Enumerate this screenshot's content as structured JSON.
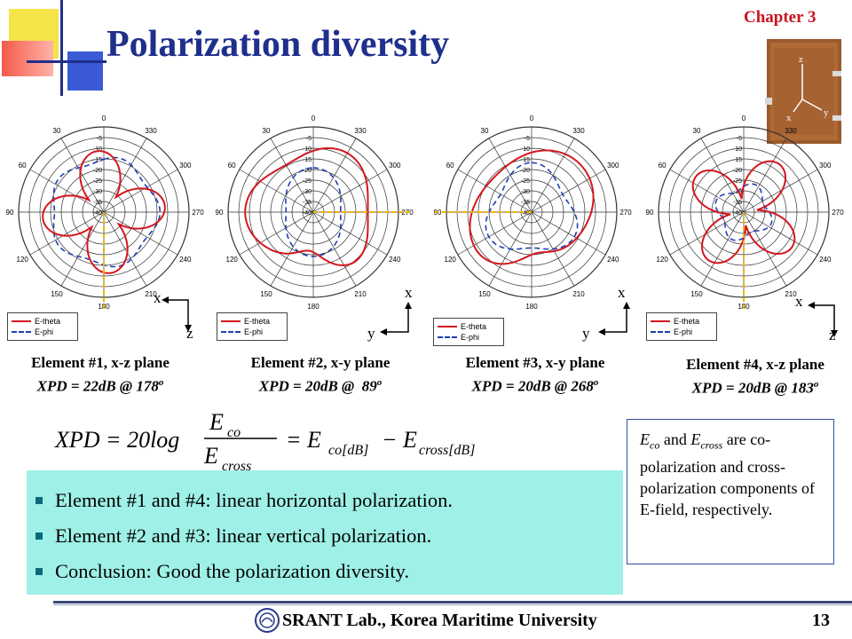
{
  "slide": {
    "chapter": "Chapter 3",
    "title": "Polarization diversity"
  },
  "photo": {
    "axes": [
      "z",
      "y",
      "x"
    ]
  },
  "polar_scale": {
    "radial_ticks": [
      "0",
      "-5",
      "-10",
      "-15",
      "-20",
      "-25",
      "-30",
      "-35",
      "-40"
    ],
    "angle_ticks": [
      "0",
      "30",
      "60",
      "90",
      "120",
      "150",
      "180",
      "210",
      "240",
      "270",
      "300",
      "330"
    ]
  },
  "legend": {
    "theta_label": "E-theta",
    "phi_label": "E-phi",
    "theta_color": "#d4161e",
    "phi_color": "#1f3fb0"
  },
  "elements": [
    {
      "caption": "Element #1, x-z plane",
      "xpd": "XPD = 22dB @ 178",
      "deg": "o",
      "axis_up": "x",
      "axis_side": "z"
    },
    {
      "caption": "Element #2, x-y plane",
      "xpd": "XPD = 20dB @  89",
      "deg": "o",
      "axis_up": "x",
      "axis_side": "y"
    },
    {
      "caption": "Element #3, x-y plane",
      "xpd": "XPD = 20dB @ 268",
      "deg": "o",
      "axis_up": "x",
      "axis_side": "y"
    },
    {
      "caption": "Element #4, x-z plane",
      "xpd": "XPD = 20dB @ 183",
      "deg": "o",
      "axis_up": "x",
      "axis_side": "z"
    }
  ],
  "formula": {
    "lhs": "XPD = 20log",
    "num": "E",
    "num_sub": "co",
    "den": "E",
    "den_sub": "cross",
    "rhs1": "= E",
    "rhs1_sub": "co[dB]",
    "rhs2": "− E",
    "rhs2_sub": "cross[dB]"
  },
  "note": {
    "e1": "E",
    "e1_sub": "co",
    "and": " and ",
    "e2": "E",
    "e2_sub": "cross",
    "rest": " are co-polarization and cross-polarization components of E-field, respectively."
  },
  "bullets": [
    "Element #1 and #4: linear horizontal polarization.",
    "Element #2 and #3: linear vertical polarization.",
    "Conclusion: Good the polarization diversity."
  ],
  "footer": {
    "lab": "SRANT Lab., Korea Maritime University",
    "page": "13"
  }
}
